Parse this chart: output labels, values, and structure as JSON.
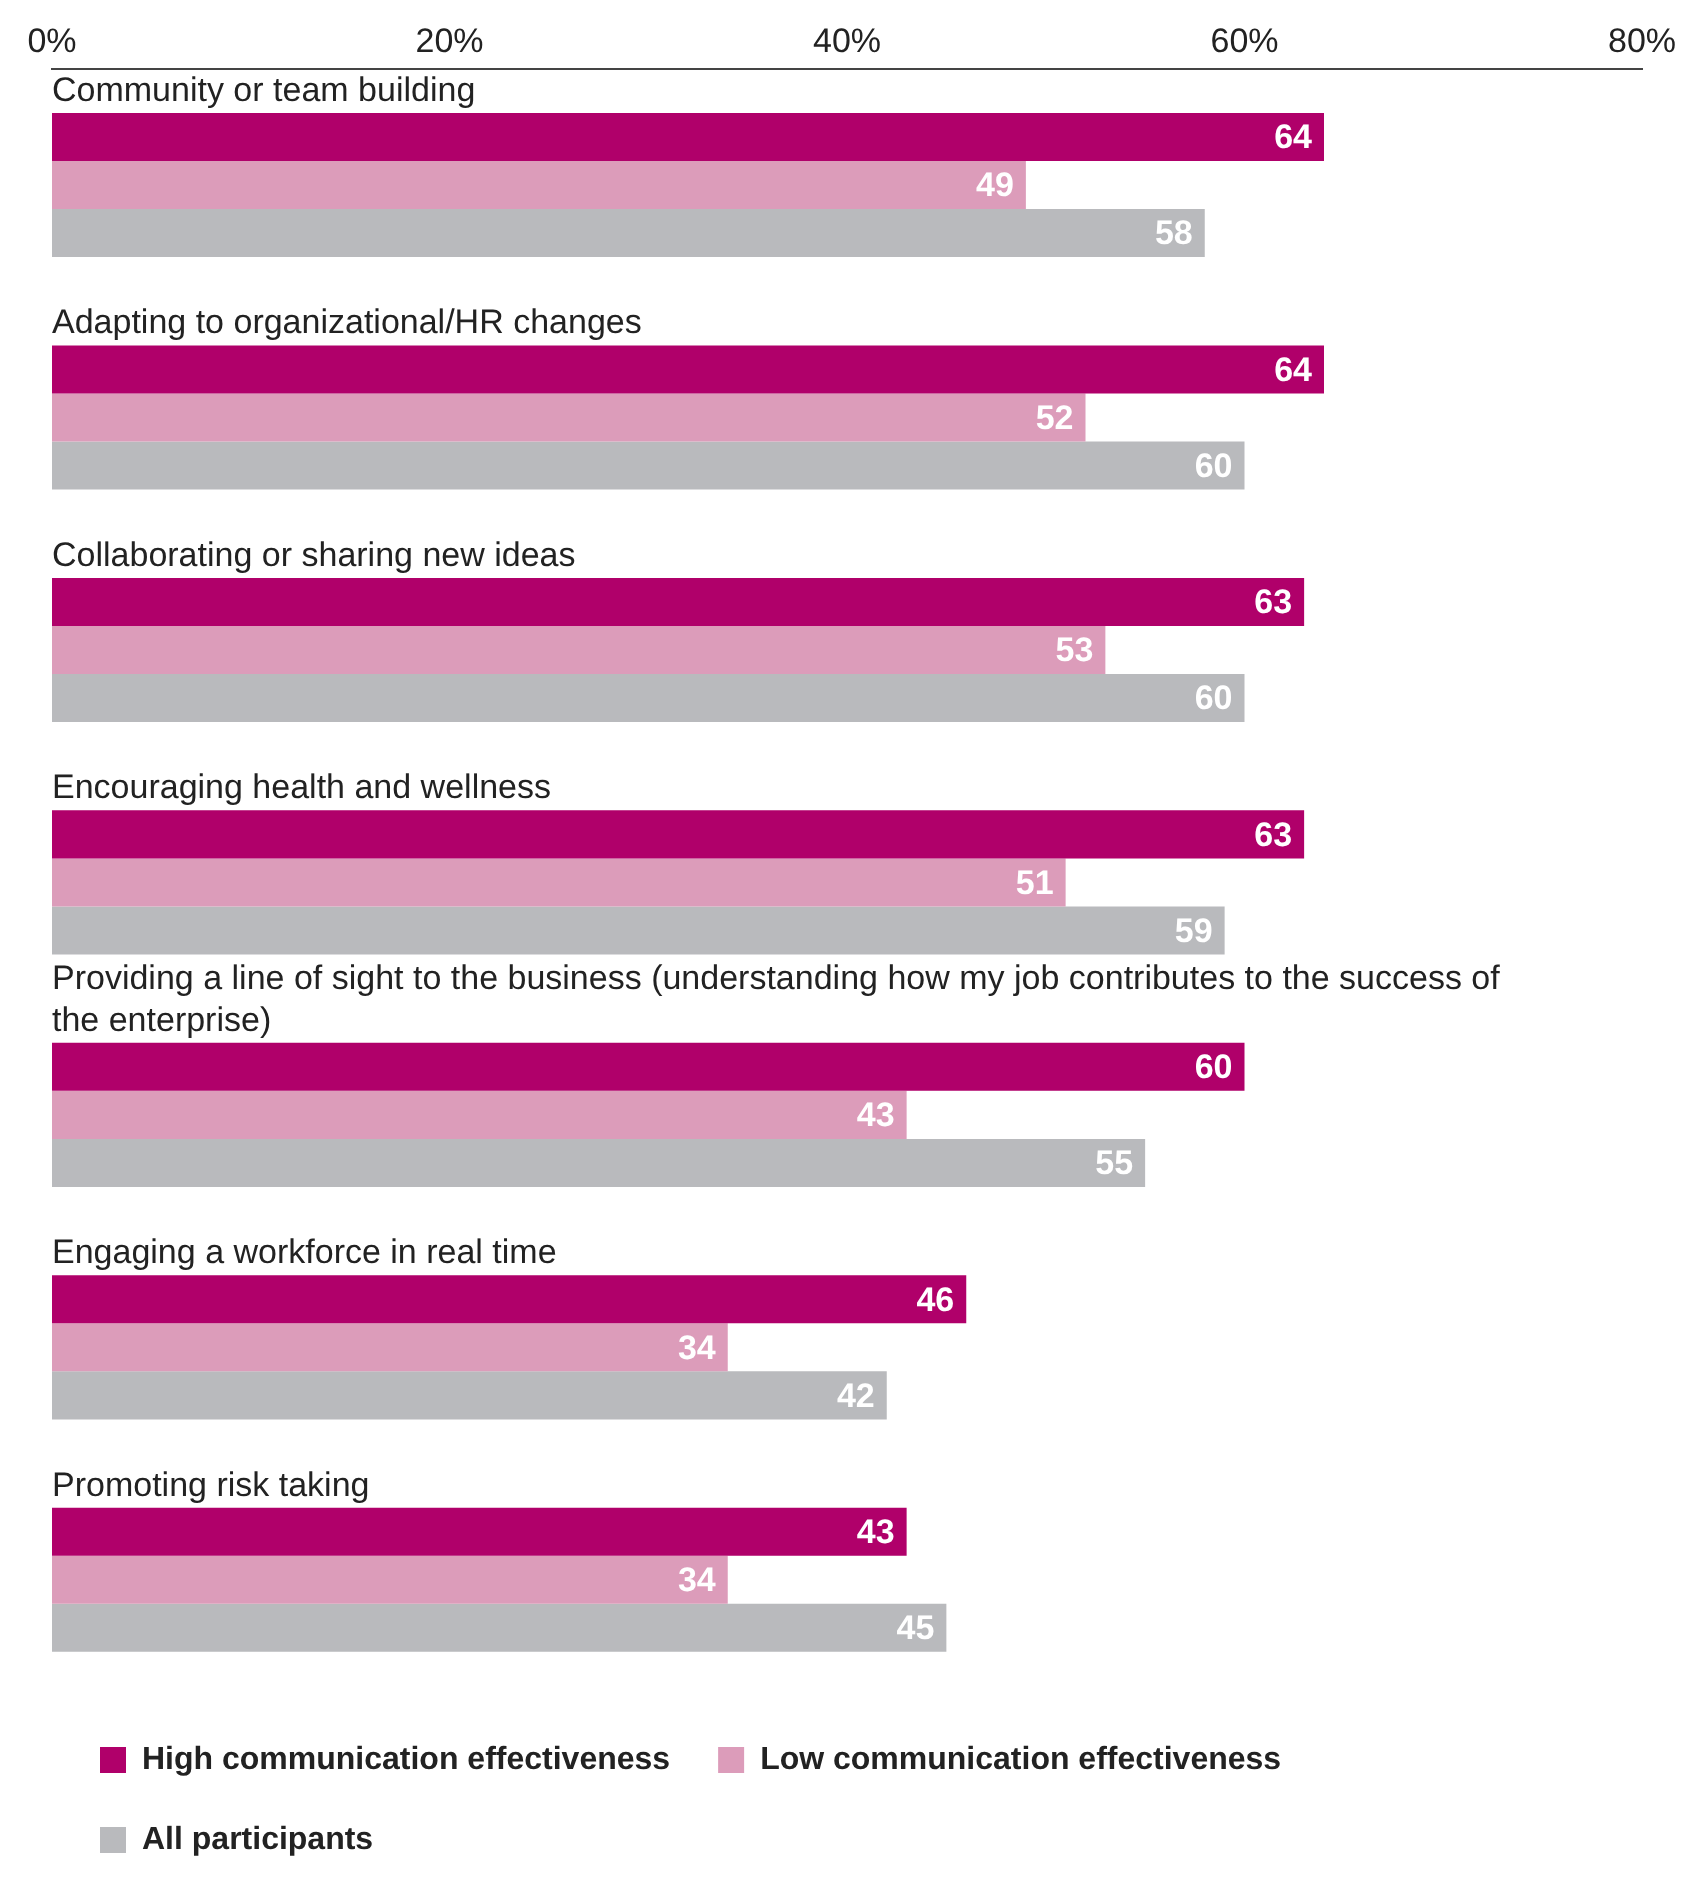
{
  "chart_data": {
    "type": "bar",
    "orientation": "horizontal",
    "categories": [
      "Community or team building",
      "Adapting to organizational/HR changes",
      "Collaborating or sharing new ideas",
      "Encouraging health and wellness",
      "Providing a line of sight to the business (understanding how my job contributes to the success of the enterprise)",
      "Engaging a workforce in real time",
      "Promoting risk taking"
    ],
    "series": [
      {
        "name": "High communication effectiveness",
        "color": "#b0006a",
        "values": [
          64,
          64,
          63,
          63,
          60,
          46,
          43
        ]
      },
      {
        "name": "Low communication effectiveness",
        "color": "#dc9cba",
        "values": [
          49,
          52,
          53,
          51,
          43,
          34,
          34
        ]
      },
      {
        "name": "All participants",
        "color": "#b9babd",
        "values": [
          58,
          60,
          60,
          59,
          55,
          42,
          45
        ]
      }
    ],
    "xlim": [
      0,
      80
    ],
    "xticks": [
      {
        "value": 0,
        "label": "0%"
      },
      {
        "value": 20,
        "label": "20%"
      },
      {
        "value": 40,
        "label": "40%"
      },
      {
        "value": 60,
        "label": "60%"
      },
      {
        "value": 80,
        "label": "80%"
      }
    ],
    "grid": false,
    "legend": "bottom",
    "data_labels": true
  }
}
